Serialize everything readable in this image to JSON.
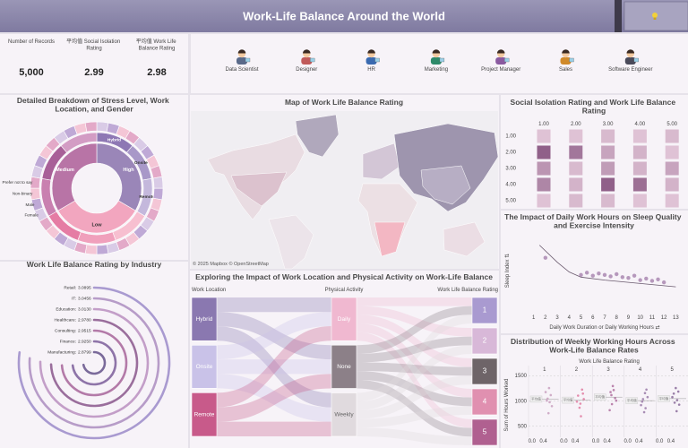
{
  "header": {
    "title": "Work-Life Balance Around the World"
  },
  "kpis": [
    {
      "label": "Number of Records",
      "value": 5000,
      "value_label": "5,000"
    },
    {
      "label": "平均值 Social Isolation Rating",
      "value": 2.99
    },
    {
      "label": "平均值 Work Life Balance Rating",
      "value": 2.98
    }
  ],
  "roles": [
    "Data Scientist",
    "Designer",
    "HR",
    "Marketing",
    "Project Manager",
    "Sales",
    "Software Engineer"
  ],
  "chart_data": [
    {
      "type": "sunburst",
      "title": "Detailed Breakdown of Stress Level, Work Location, and Gender",
      "rings": [
        {
          "segments": [
            {
              "label": "High",
              "value": 1668,
              "color": "#9a86b8"
            },
            {
              "label": "Low",
              "value": 1664,
              "color": "#f2a6bf"
            },
            {
              "label": "Medium",
              "value": 1668,
              "color": "#b874a6"
            }
          ]
        },
        {
          "segments": [
            {
              "label": "Hybrid",
              "value": 556,
              "color": "#8e78b4"
            },
            {
              "label": "Onsite",
              "value": 556,
              "color": "#a898c8"
            },
            {
              "label": "Remote",
              "value": 556,
              "color": "#c4b8dc"
            },
            {
              "value": 555,
              "color": "#f7bfd0"
            },
            {
              "value": 554,
              "color": "#f0a0bc"
            },
            {
              "value": 555,
              "color": "#e57ca4"
            },
            {
              "value": 556,
              "color": "#c980b0"
            },
            {
              "value": 556,
              "color": "#a86098"
            },
            {
              "value": 556,
              "color": "#d39cc4"
            }
          ]
        },
        {
          "palette": [
            "#d9cbe6",
            "#bfa9d6",
            "#f4c6d6",
            "#e3a9c8"
          ],
          "segments": [
            {
              "value": 140
            },
            {
              "value": 138
            },
            {
              "value": 139
            },
            {
              "value": 139
            },
            {
              "value": 140
            },
            {
              "value": 138
            },
            {
              "value": 139
            },
            {
              "value": 139
            },
            {
              "value": 140
            },
            {
              "value": 138
            },
            {
              "value": 139
            },
            {
              "value": 139
            },
            {
              "value": 139
            },
            {
              "value": 139
            },
            {
              "value": 138
            },
            {
              "value": 139
            },
            {
              "value": 138
            },
            {
              "value": 139
            },
            {
              "value": 139
            },
            {
              "value": 138
            },
            {
              "value": 139
            },
            {
              "value": 139
            },
            {
              "value": 138
            },
            {
              "value": 139
            },
            {
              "label": "Female",
              "value": 140
            },
            {
              "label": "Male",
              "value": 138
            },
            {
              "label": "Non-binary",
              "value": 139
            },
            {
              "label": "Prefer not to say",
              "value": 139
            },
            {
              "value": 140
            },
            {
              "value": 138
            },
            {
              "value": 139
            },
            {
              "value": 139
            },
            {
              "value": 140
            },
            {
              "value": 138
            },
            {
              "value": 139
            },
            {
              "value": 139
            }
          ]
        }
      ]
    },
    {
      "type": "radial_bar",
      "title": "Work Life Balance Rating by Industry",
      "categories": [
        "Retail:",
        "IT:",
        "Education:",
        "Healthcare:",
        "Consulting:",
        "Finance:",
        "Manufacturing:"
      ],
      "values": [
        3.0895,
        3.0456,
        3.013,
        2.978,
        2.9515,
        2.925,
        2.8799
      ],
      "value_labels": [
        "3.0895",
        "3.0456",
        "3.0130",
        "2.9780",
        "2.9515",
        "2.9250",
        "2.8799"
      ],
      "colors": [
        "#a99ad0",
        "#b79cc8",
        "#c39ec8",
        "#9a6e9c",
        "#b37aa8",
        "#8e74a8",
        "#7a6a9a"
      ],
      "rlim": [
        0,
        4
      ]
    },
    {
      "type": "map",
      "title": "Map of Work Life Balance Rating",
      "attribution": "© 2025 Mapbox © OpenStreetMap"
    },
    {
      "type": "sankey",
      "title": "Exploring the Impact of Work Location and Physical Activity on Work-Life Balance",
      "columns": [
        {
          "header": "Work Location",
          "nodes": [
            {
              "name": "Hybrid",
              "color": "#8a78b0"
            },
            {
              "name": "Onsite",
              "color": "#c9c2e8"
            },
            {
              "name": "Remote",
              "color": "#c85a8a"
            }
          ]
        },
        {
          "header": "Physical Activity",
          "nodes": [
            {
              "name": "Daily",
              "color": "#f0b8d0"
            },
            {
              "name": "None",
              "color": "#8c8088"
            },
            {
              "name": "Weekly",
              "color": "#e0dade"
            }
          ]
        },
        {
          "header": "Work Life Balance Rating",
          "nodes": [
            {
              "name": "1",
              "color": "#a99ad0"
            },
            {
              "name": "2",
              "color": "#d8b8d8"
            },
            {
              "name": "3",
              "color": "#6e6468"
            },
            {
              "name": "4",
              "color": "#e090b0"
            },
            {
              "name": "5",
              "color": "#b06090"
            }
          ]
        }
      ],
      "links": [
        {
          "source": "Hybrid",
          "target": "Daily",
          "value": 560
        },
        {
          "source": "Hybrid",
          "target": "None",
          "value": 548
        },
        {
          "source": "Hybrid",
          "target": "Weekly",
          "value": 557
        },
        {
          "source": "Onsite",
          "target": "Daily",
          "value": 545
        },
        {
          "source": "Onsite",
          "target": "None",
          "value": 560
        },
        {
          "source": "Onsite",
          "target": "Weekly",
          "value": 553
        },
        {
          "source": "Remote",
          "target": "Daily",
          "value": 558
        },
        {
          "source": "Remote",
          "target": "None",
          "value": 556
        },
        {
          "source": "Remote",
          "target": "Weekly",
          "value": 563
        },
        {
          "source": "Daily",
          "target": "1",
          "value": 330
        },
        {
          "source": "Daily",
          "target": "2",
          "value": 335
        },
        {
          "source": "Daily",
          "target": "3",
          "value": 332
        },
        {
          "source": "Daily",
          "target": "4",
          "value": 333
        },
        {
          "source": "Daily",
          "target": "5",
          "value": 333
        },
        {
          "source": "None",
          "target": "1",
          "value": 334
        },
        {
          "source": "None",
          "target": "2",
          "value": 331
        },
        {
          "source": "None",
          "target": "3",
          "value": 333
        },
        {
          "source": "None",
          "target": "4",
          "value": 333
        },
        {
          "source": "None",
          "target": "5",
          "value": 333
        },
        {
          "source": "Weekly",
          "target": "1",
          "value": 336
        },
        {
          "source": "Weekly",
          "target": "2",
          "value": 334
        },
        {
          "source": "Weekly",
          "target": "3",
          "value": 335
        },
        {
          "source": "Weekly",
          "target": "4",
          "value": 333
        },
        {
          "source": "Weekly",
          "target": "5",
          "value": 335
        }
      ]
    },
    {
      "type": "heatmap",
      "title": "Social Isolation Rating and Work Life Balance Rating",
      "xticks": [
        {
          "value": 1,
          "label": "1.00"
        },
        {
          "value": 2,
          "label": "2.00"
        },
        {
          "value": 3,
          "label": "3.00"
        },
        {
          "value": 4,
          "label": "4.00"
        },
        {
          "value": 5,
          "label": "5.00"
        }
      ],
      "yticks": [
        {
          "value": 1,
          "label": "1.00"
        },
        {
          "value": 2,
          "label": "2.00"
        },
        {
          "value": 3,
          "label": "3.00"
        },
        {
          "value": 4,
          "label": "4.00"
        },
        {
          "value": 5,
          "label": "5.00"
        }
      ],
      "values": [
        [
          172,
          172,
          178,
          172,
          178
        ],
        [
          244,
          227,
          194,
          183,
          172
        ],
        [
          205,
          178,
          200,
          183,
          194
        ],
        [
          216,
          183,
          244,
          233,
          183
        ],
        [
          172,
          178,
          178,
          172,
          172
        ]
      ],
      "color_range": [
        "#f7e0ec",
        "#7e4a78"
      ],
      "clim": [
        150,
        260
      ]
    },
    {
      "type": "scatter",
      "title": "The Impact of Daily Work Hours on Sleep Quality and Exercise Intensity",
      "x_label": "Daily Work Duration or Daily Working Hours ⇄",
      "y_label": "Sleep Index ⇅",
      "xlim": [
        0.5,
        13.5
      ],
      "xticks": [
        1,
        2,
        3,
        4,
        5,
        6,
        7,
        8,
        9,
        10,
        11,
        12,
        13
      ],
      "ylim": [
        0,
        10
      ],
      "color": "#a07aa8",
      "x": [
        2,
        5,
        5.5,
        6,
        6.5,
        7,
        7.5,
        8,
        8.5,
        9,
        9.5,
        10,
        10.5,
        11,
        11.5,
        12
      ],
      "values": [
        6.9,
        4.6,
        4.9,
        4.5,
        4.8,
        4.6,
        4.4,
        4.7,
        4.3,
        4.2,
        4.5,
        3.9,
        4.1,
        3.8,
        4.0,
        3.6
      ],
      "trend": {
        "color": "#6a5a6e",
        "x": [
          1.5,
          3,
          4,
          5,
          7,
          9,
          11,
          13
        ],
        "values": [
          8.6,
          6.3,
          5.0,
          4.3,
          3.9,
          3.6,
          3.3,
          3.0
        ]
      }
    },
    {
      "type": "strip",
      "title": "Distribution of Weekly Working Hours Across Work-Life Balance Rates",
      "subtitle": "Work Life Balance Rating",
      "y_label": "Sum of Hours Worked",
      "ylim": [
        300,
        1600
      ],
      "yticks": [
        500,
        1000,
        1500
      ],
      "xlim": [
        -0.12,
        1.0
      ],
      "xticks": [
        {
          "value": 0,
          "label": "0.0"
        },
        {
          "value": 0.4,
          "label": "0.4"
        }
      ],
      "mean_label": "平均值",
      "panels": [
        {
          "name": "1",
          "color": "#c9a0c0",
          "mean": 1040,
          "x": [
            0.55,
            0.62,
            0.48,
            0.7,
            0.58,
            0.66,
            0.52,
            0.6
          ],
          "values": [
            1050,
            980,
            1180,
            900,
            760,
            1120,
            1010,
            1260
          ]
        },
        {
          "name": "2",
          "color": "#e07aa0",
          "mean": 1020,
          "x": [
            0.5,
            0.58,
            0.64,
            0.55,
            0.7,
            0.46,
            0.6,
            0.67
          ],
          "values": [
            1110,
            950,
            1230,
            870,
            1040,
            990,
            700,
            1150
          ]
        },
        {
          "name": "3",
          "color": "#b070a0",
          "mean": 1080,
          "x": [
            0.6,
            0.52,
            0.68,
            0.57,
            0.63,
            0.49,
            0.72,
            0.55
          ],
          "values": [
            1300,
            1180,
            1060,
            940,
            1220,
            820,
            1010,
            1120
          ]
        },
        {
          "name": "4",
          "color": "#9a7aa8",
          "mean": 1010,
          "x": [
            0.54,
            0.61,
            0.47,
            0.66,
            0.58,
            0.7,
            0.51,
            0.63
          ],
          "values": [
            1040,
            1160,
            920,
            1230,
            780,
            1080,
            990,
            860
          ]
        },
        {
          "name": "5",
          "color": "#8a6a9a",
          "mean": 1050,
          "x": [
            0.5,
            0.62,
            0.57,
            0.69,
            0.45,
            0.6,
            0.66,
            0.53
          ],
          "values": [
            1150,
            1020,
            1260,
            930,
            1080,
            800,
            1190,
            970
          ]
        }
      ]
    }
  ]
}
